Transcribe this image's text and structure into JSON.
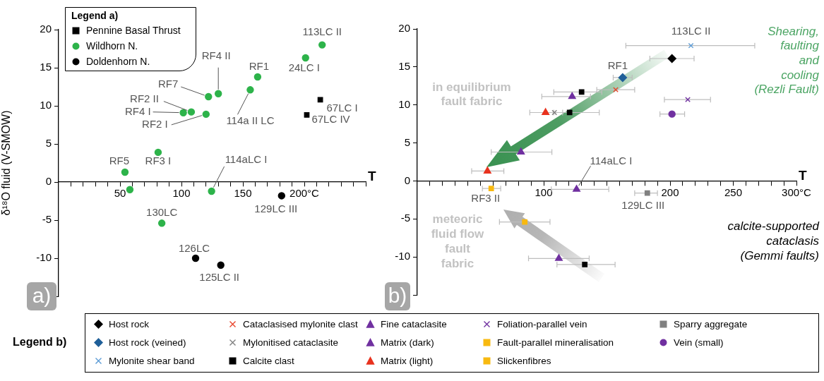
{
  "chart_data": [
    {
      "type": "scatter",
      "xlabel": "T",
      "ylabel": "δ¹⁸O fluid (V-SMOW)",
      "legend_title": "Legend a)",
      "legend": "top left",
      "grid": false,
      "xlim": [
        0,
        250
      ],
      "xticks": [
        {
          "value": 10,
          "label": null
        },
        {
          "value": 20,
          "label": null
        },
        {
          "value": 30,
          "label": null
        },
        {
          "value": 40,
          "label": null
        },
        50,
        {
          "value": 60,
          "label": null
        },
        {
          "value": 70,
          "label": null
        },
        {
          "value": 80,
          "label": null
        },
        {
          "value": 90,
          "label": null
        },
        100,
        {
          "value": 110,
          "label": null
        },
        {
          "value": 120,
          "label": null
        },
        {
          "value": 130,
          "label": null
        },
        {
          "value": 140,
          "label": null
        },
        150,
        {
          "value": 160,
          "label": null
        },
        {
          "value": 170,
          "label": null
        },
        {
          "value": 180,
          "label": null
        },
        {
          "value": 190,
          "label": null
        },
        {
          "value": 200,
          "label": "200°C"
        },
        {
          "value": 210,
          "label": null
        },
        {
          "value": 220,
          "label": null
        },
        {
          "value": 230,
          "label": null
        },
        {
          "value": 240,
          "label": null
        },
        {
          "value": 250,
          "label": null
        }
      ],
      "ylim": [
        -15,
        20
      ],
      "yticks": [
        {
          "value": -15,
          "label": null
        },
        -10,
        -5,
        0,
        5,
        10,
        15,
        20
      ],
      "series": [
        {
          "name": "Pennine Basal Thrust",
          "color": "#000000",
          "marker": "square",
          "x": [
            213,
            202
          ],
          "values": [
            10.8,
            8.8
          ]
        },
        {
          "name": "Wildhorn N.",
          "color": "#2db34a",
          "marker": "circle",
          "x": [
            54,
            58,
            81,
            84,
            101.5,
            108,
            120,
            122,
            130,
            124.5,
            156,
            162,
            201,
            214.5
          ],
          "values": [
            1.3,
            -1.0,
            3.9,
            -5.4,
            9.1,
            9.2,
            8.9,
            11.2,
            11.6,
            -1.2,
            12.1,
            13.8,
            16.3,
            18.0
          ]
        },
        {
          "name": "Doldenhorn N.",
          "color": "#000000",
          "marker": "circle",
          "x": [
            181.5,
            111.5,
            132
          ],
          "values": [
            -1.8,
            -10.0,
            -10.9
          ]
        }
      ],
      "annotations": [
        {
          "text": "RF5",
          "x": 54,
          "y": 1.3
        },
        {
          "text": "RF3 I",
          "x": 81,
          "y": 3.9
        },
        {
          "text": "130LC",
          "x": 84,
          "y": -5.4
        },
        {
          "text": "RF4 I",
          "x": 101.5,
          "y": 9.1
        },
        {
          "text": "RF2 II",
          "x": 108,
          "y": 9.2
        },
        {
          "text": "RF2 I",
          "x": 120,
          "y": 8.9
        },
        {
          "text": "RF7",
          "x": 122,
          "y": 11.2
        },
        {
          "text": "RF4 II",
          "x": 130,
          "y": 11.6
        },
        {
          "text": "114aLC I",
          "x": 124.5,
          "y": -1.2
        },
        {
          "text": "114a II LC",
          "x": 156,
          "y": 12.1
        },
        {
          "text": "RF1",
          "x": 162,
          "y": 13.8
        },
        {
          "text": "24LC I",
          "x": 201,
          "y": 16.3
        },
        {
          "text": "113LC II",
          "x": 214.5,
          "y": 18.0
        },
        {
          "text": "67LC I",
          "x": 213,
          "y": 10.8
        },
        {
          "text": "67LC IV",
          "x": 202,
          "y": 8.8
        },
        {
          "text": "129LC III",
          "x": 181.5,
          "y": -1.8
        },
        {
          "text": "126LC",
          "x": 111.5,
          "y": -10.0
        },
        {
          "text": "125LC II",
          "x": 132,
          "y": -10.9
        },
        "a)"
      ]
    },
    {
      "type": "scatter",
      "xlabel": "T",
      "legend_title": "Legend b)",
      "legend": "bottom",
      "grid": false,
      "xlim": [
        0,
        300
      ],
      "xticks": [
        {
          "value": 10,
          "label": null
        },
        {
          "value": 20,
          "label": null
        },
        {
          "value": 30,
          "label": null
        },
        {
          "value": 40,
          "label": null
        },
        {
          "value": 50,
          "label": null
        },
        {
          "value": 60,
          "label": null
        },
        {
          "value": 70,
          "label": null
        },
        {
          "value": 80,
          "label": null
        },
        {
          "value": 90,
          "label": null
        },
        100,
        {
          "value": 110,
          "label": null
        },
        {
          "value": 120,
          "label": null
        },
        {
          "value": 130,
          "label": null
        },
        {
          "value": 140,
          "label": null
        },
        {
          "value": 150,
          "label": null
        },
        {
          "value": 160,
          "label": null
        },
        {
          "value": 170,
          "label": null
        },
        {
          "value": 180,
          "label": null
        },
        {
          "value": 190,
          "label": null
        },
        200,
        {
          "value": 210,
          "label": null
        },
        {
          "value": 220,
          "label": null
        },
        {
          "value": 230,
          "label": null
        },
        {
          "value": 240,
          "label": null
        },
        250,
        {
          "value": 260,
          "label": null
        },
        {
          "value": 270,
          "label": null
        },
        {
          "value": 280,
          "label": null
        },
        {
          "value": 290,
          "label": null
        },
        {
          "value": 300,
          "label": "300°C"
        }
      ],
      "ylim": [
        -15,
        20
      ],
      "yticks": [
        {
          "value": -15,
          "label": null
        },
        -10,
        -5,
        0,
        5,
        10,
        15,
        20
      ],
      "series": [
        {
          "name": "Host rock",
          "color": "#000000",
          "marker": "diamond",
          "x": [
            201.5
          ],
          "values": [
            16.1
          ],
          "xerrors": [
            [
              184,
              219
            ]
          ]
        },
        {
          "name": "Host rock (veined)",
          "color": "#1f5f99",
          "marker": "diamond",
          "x": [
            162.5
          ],
          "values": [
            13.6
          ],
          "xerrors": [
            [
              155,
              170
            ]
          ]
        },
        {
          "name": "Mylonite shear band",
          "color": "#5b9bd5",
          "marker": "cross",
          "x": [
            216.5
          ],
          "values": [
            17.8
          ],
          "xerrors": [
            [
              165,
              267
            ]
          ]
        },
        {
          "name": "Cataclasised mylonite clast",
          "color": "#e8452c",
          "marker": "cross",
          "x": [
            157
          ],
          "values": [
            12.0
          ],
          "xerrors": [
            [
              142,
              172
            ]
          ]
        },
        {
          "name": "Mylonitised cataclasite",
          "color": "#808080",
          "marker": "cross",
          "x": [
            108.5
          ],
          "values": [
            9.0
          ]
        },
        {
          "name": "Calcite clast",
          "color": "#000000",
          "marker": "square",
          "x": [
            130,
            120.5,
            132.5
          ],
          "values": [
            11.7,
            9.0,
            -11.0
          ],
          "xerrors": [
            [
              108,
              146
            ],
            [
              108,
              144
            ],
            [
              110.5,
              156.5
            ]
          ]
        },
        {
          "name": "Fine cataclasite",
          "color": "#7030a0",
          "marker": "triangle",
          "x": [
            122.5,
            82,
            112
          ],
          "values": [
            11.1,
            3.8,
            -10.2
          ],
          "xerrors": [
            [
              98.5,
              137
            ],
            [
              58.5,
              106.5
            ],
            [
              88,
              136
            ]
          ]
        },
        {
          "name": "Matrix (dark)",
          "color": "#7030a0",
          "marker": "triangle",
          "x": [
            126
          ],
          "values": [
            -1.1
          ],
          "xerrors": [
            [
              106,
              151.5
            ]
          ]
        },
        {
          "name": "Matrix (light)",
          "color": "#e8321e",
          "marker": "triangle",
          "x": [
            101.5,
            55.5
          ],
          "values": [
            9.0,
            1.3
          ],
          "xerrors": [
            [
              89,
              115
            ],
            [
              43,
              68.5
            ]
          ]
        },
        {
          "name": "Foliation-parallel vein",
          "color": "#7030a0",
          "marker": "cross",
          "x": [
            214
          ],
          "values": [
            10.7
          ],
          "xerrors": [
            [
              195.5,
              232
            ]
          ]
        },
        {
          "name": "Fault-parallel mineralisation",
          "color": "#f8b90f",
          "marker": "square",
          "x": [
            85
          ],
          "values": [
            -5.4
          ],
          "xerrors": [
            [
              65,
              105
            ]
          ]
        },
        {
          "name": "Slickenfibres",
          "color": "#f8b90f",
          "marker": "square",
          "x": [
            58.5
          ],
          "values": [
            -1.0
          ],
          "xerrors": [
            [
              51.5,
              66
            ]
          ]
        },
        {
          "name": "Sparry aggregate",
          "color": "#808080",
          "marker": "square",
          "x": [
            182
          ],
          "values": [
            -1.6
          ],
          "xerrors": [
            [
              172,
              190
            ]
          ]
        },
        {
          "name": "Vein (small)",
          "color": "#7030a0",
          "marker": "circle",
          "x": [
            201.5
          ],
          "values": [
            8.8
          ],
          "xerrors": [
            [
              192,
              211.5
            ]
          ]
        }
      ],
      "annotations": [
        {
          "text": "113LC II",
          "x": 216.5,
          "y": 17.8
        },
        {
          "text": "RF1",
          "x": 162.5,
          "y": 13.6
        },
        {
          "text": "114aLC I",
          "x": 126,
          "y": -1.1
        },
        {
          "text": "RF3 II",
          "x": 58.5,
          "y": -1.0
        },
        {
          "text": "129LC III",
          "x": 182,
          "y": -1.6
        },
        "b)",
        "in equilibrium\nfault fabric",
        "meteoric\nfluid flow\nfault\nfabric",
        "Shearing,\nfaulting\nand\ncooling\n(Rezli Fault)",
        "calcite-supported\ncataclasis\n(Gemmi faults)"
      ]
    }
  ]
}
